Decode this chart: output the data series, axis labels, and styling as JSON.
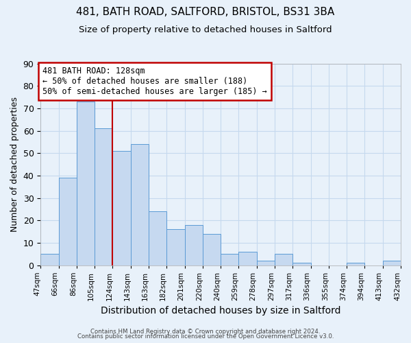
{
  "title": "481, BATH ROAD, SALTFORD, BRISTOL, BS31 3BA",
  "subtitle": "Size of property relative to detached houses in Saltford",
  "xlabel": "Distribution of detached houses by size in Saltford",
  "ylabel": "Number of detached properties",
  "bar_labels": [
    "47sqm",
    "66sqm",
    "86sqm",
    "105sqm",
    "124sqm",
    "143sqm",
    "163sqm",
    "182sqm",
    "201sqm",
    "220sqm",
    "240sqm",
    "259sqm",
    "278sqm",
    "297sqm",
    "317sqm",
    "336sqm",
    "355sqm",
    "374sqm",
    "394sqm",
    "413sqm",
    "432sqm"
  ],
  "bar_values": [
    5,
    39,
    73,
    61,
    51,
    54,
    24,
    16,
    18,
    14,
    5,
    6,
    2,
    5,
    1,
    0,
    0,
    1,
    0,
    2
  ],
  "bar_color": "#c6d9f0",
  "bar_edge_color": "#5b9bd5",
  "vline_x_index": 4,
  "vline_color": "#c00000",
  "annotation_text": "481 BATH ROAD: 128sqm\n← 50% of detached houses are smaller (188)\n50% of semi-detached houses are larger (185) →",
  "annotation_box_color": "#ffffff",
  "annotation_box_edge": "#c00000",
  "ylim": [
    0,
    90
  ],
  "yticks": [
    0,
    10,
    20,
    30,
    40,
    50,
    60,
    70,
    80,
    90
  ],
  "grid_color": "#c5d9ee",
  "background_color": "#e8f1fa",
  "footer1": "Contains HM Land Registry data © Crown copyright and database right 2024.",
  "footer2": "Contains public sector information licensed under the Open Government Licence v3.0.",
  "title_fontsize": 11,
  "subtitle_fontsize": 9.5,
  "xlabel_fontsize": 10,
  "ylabel_fontsize": 9
}
